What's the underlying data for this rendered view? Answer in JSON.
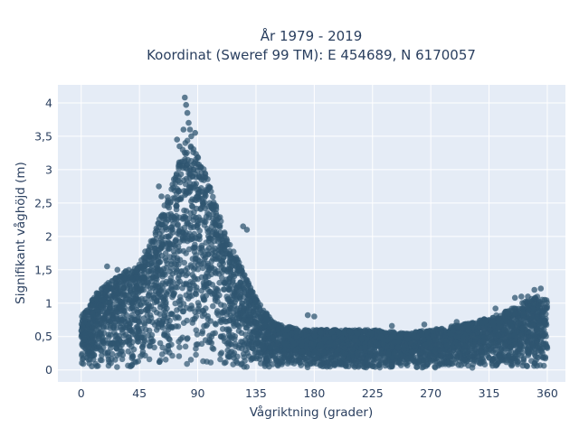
{
  "chart_data": {
    "type": "scatter",
    "title_line1": "År 1979 - 2019",
    "title_line2": "Koordinat (Sweref 99 TM): E 454689, N 6170057",
    "xlabel": "Vågriktning (grader)",
    "ylabel": "Signifikant våghöjd (m)",
    "xlim": [
      -18,
      374
    ],
    "ylim": [
      -0.18,
      4.27
    ],
    "x_ticks": [
      0,
      45,
      90,
      135,
      180,
      225,
      270,
      315,
      360
    ],
    "x_tick_labels": [
      "0",
      "45",
      "90",
      "135",
      "180",
      "225",
      "270",
      "315",
      "360"
    ],
    "y_ticks": [
      0,
      0.5,
      1,
      1.5,
      2,
      2.5,
      3,
      3.5,
      4
    ],
    "y_tick_labels": [
      "0",
      "0,5",
      "1",
      "1,5",
      "2",
      "2,5",
      "3",
      "3,5",
      "4"
    ],
    "grid": true,
    "marker_color": "#2f5570",
    "plot_background": "#e5ecf6",
    "upper_envelope": {
      "x": [
        0,
        10,
        20,
        30,
        45,
        55,
        65,
        72,
        78,
        82,
        86,
        90,
        95,
        100,
        106,
        113,
        120,
        127,
        135,
        143,
        150,
        160,
        170,
        180,
        200,
        225,
        250,
        270,
        285,
        300,
        315,
        325,
        335,
        345,
        352,
        360
      ],
      "y": [
        0.8,
        1.1,
        1.3,
        1.45,
        1.6,
        2.0,
        2.5,
        2.9,
        3.3,
        3.5,
        3.4,
        3.2,
        3.0,
        2.75,
        2.35,
        2.0,
        1.7,
        1.4,
        1.1,
        0.85,
        0.7,
        0.65,
        0.6,
        0.6,
        0.6,
        0.6,
        0.55,
        0.6,
        0.65,
        0.7,
        0.78,
        0.85,
        0.95,
        1.05,
        1.1,
        1.05
      ]
    },
    "outliers": {
      "x": [
        80,
        81,
        82,
        83,
        84,
        79,
        85,
        74,
        88,
        76,
        60,
        62,
        125,
        128,
        12,
        20,
        28,
        36,
        340,
        345,
        350,
        355,
        358,
        175,
        180,
        240,
        265,
        290,
        320,
        335
      ],
      "y": [
        4.08,
        3.97,
        3.85,
        3.7,
        3.6,
        3.6,
        3.5,
        3.45,
        3.55,
        3.35,
        2.75,
        2.6,
        2.15,
        2.1,
        1.15,
        1.55,
        1.5,
        1.45,
        1.1,
        1.1,
        1.2,
        1.22,
        1.05,
        0.82,
        0.8,
        0.66,
        0.68,
        0.72,
        0.92,
        1.08
      ]
    }
  }
}
